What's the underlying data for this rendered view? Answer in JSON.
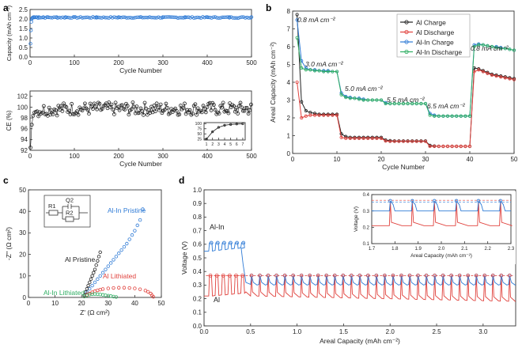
{
  "colors": {
    "black": "#222222",
    "red": "#e0413c",
    "blue": "#2f7bd6",
    "green": "#2fae63",
    "axis": "#333333"
  },
  "panel_labels": {
    "a": "a",
    "b": "b",
    "c": "c",
    "d": "d"
  },
  "chart_data": [
    {
      "id": "a_top",
      "type": "scatter",
      "xlabel": "Cycle Number",
      "ylabel": "Capacity (mAh cm⁻²)",
      "xlim": [
        0,
        500
      ],
      "ylim": [
        0,
        2.5
      ],
      "xticks": [
        0,
        100,
        200,
        300,
        400,
        500
      ],
      "yticks": [
        0.0,
        0.5,
        1.0,
        1.5,
        2.0,
        2.5
      ],
      "ytick_labels": [
        "0.0",
        "0.5",
        "1.0",
        "1.5",
        "2.0",
        "2.5"
      ],
      "series": [
        {
          "color": "blue",
          "x": [
            1,
            2,
            3,
            4,
            5,
            6,
            8,
            10,
            15,
            20,
            30,
            40,
            60,
            80,
            100,
            150,
            200,
            250,
            300,
            350,
            400,
            450,
            500
          ],
          "y": [
            0.7,
            1.4,
            1.85,
            2.0,
            2.05,
            2.08,
            2.1,
            2.1,
            2.1,
            2.1,
            2.1,
            2.1,
            2.1,
            2.1,
            2.1,
            2.1,
            2.1,
            2.1,
            2.1,
            2.1,
            2.1,
            2.1,
            2.1
          ]
        }
      ]
    },
    {
      "id": "a_bottom",
      "type": "scatter",
      "xlabel": "Cycle Number",
      "ylabel": "CE (%)",
      "xlim": [
        0,
        500
      ],
      "ylim": [
        92,
        103
      ],
      "xticks": [
        0,
        100,
        200,
        300,
        400,
        500
      ],
      "yticks": [
        92,
        94,
        96,
        98,
        100,
        102
      ],
      "series": [
        {
          "color": "black",
          "trend": [
            [
              1,
              92.5
            ],
            [
              3,
              96
            ],
            [
              6,
              98.2
            ],
            [
              10,
              99
            ],
            [
              20,
              99.4
            ],
            [
              40,
              99.6
            ],
            [
              100,
              99.7
            ],
            [
              500,
              99.7
            ]
          ]
        }
      ],
      "inset": {
        "xticks": [
          1,
          2,
          3,
          4,
          5,
          6,
          7
        ],
        "yticks": [
          25,
          50,
          75,
          100
        ],
        "ylim": [
          20,
          105
        ],
        "x": [
          1,
          2,
          3,
          4,
          5,
          6,
          7
        ],
        "y": [
          25,
          60,
          82,
          92,
          96,
          98,
          99
        ]
      }
    },
    {
      "id": "b",
      "type": "line",
      "xlabel": "Cycle Number",
      "ylabel": "Areal Capacity (mAh cm⁻²)",
      "xlim": [
        0,
        50
      ],
      "ylim": [
        0,
        8
      ],
      "xticks": [
        0,
        10,
        20,
        30,
        40,
        50
      ],
      "yticks": [
        0,
        1,
        2,
        3,
        4,
        5,
        6,
        7,
        8
      ],
      "series": [
        {
          "name": "Al Charge",
          "color": "black",
          "x": [
            1,
            2,
            3,
            4,
            5,
            6,
            7,
            8,
            9,
            10,
            11,
            12,
            13,
            14,
            15,
            16,
            17,
            18,
            19,
            20,
            21,
            22,
            23,
            24,
            25,
            26,
            27,
            28,
            29,
            30,
            31,
            32,
            33,
            34,
            35,
            36,
            37,
            38,
            39,
            40,
            41,
            42,
            43,
            44,
            45,
            46,
            47,
            48,
            49,
            50
          ],
          "y": [
            7.8,
            2.9,
            2.4,
            2.3,
            2.25,
            2.2,
            2.2,
            2.2,
            2.2,
            2.2,
            1.1,
            0.95,
            0.9,
            0.9,
            0.9,
            0.9,
            0.9,
            0.9,
            0.9,
            0.9,
            0.75,
            0.72,
            0.7,
            0.7,
            0.7,
            0.7,
            0.7,
            0.7,
            0.7,
            0.7,
            0.45,
            0.42,
            0.4,
            0.4,
            0.4,
            0.4,
            0.4,
            0.4,
            0.4,
            0.4,
            4.8,
            4.75,
            4.65,
            4.55,
            4.45,
            4.4,
            4.35,
            4.3,
            4.25,
            4.2
          ]
        },
        {
          "name": "Al Discharge",
          "color": "red",
          "x": [
            1,
            2,
            3,
            4,
            5,
            6,
            7,
            8,
            9,
            10,
            11,
            12,
            13,
            14,
            15,
            16,
            17,
            18,
            19,
            20,
            21,
            22,
            23,
            24,
            25,
            26,
            27,
            28,
            29,
            30,
            31,
            32,
            33,
            34,
            35,
            36,
            37,
            38,
            39,
            40,
            41,
            42,
            43,
            44,
            45,
            46,
            47,
            48,
            49,
            50
          ],
          "y": [
            4.0,
            2.0,
            2.1,
            2.15,
            2.15,
            2.15,
            2.15,
            2.15,
            2.15,
            2.15,
            0.9,
            0.85,
            0.85,
            0.85,
            0.85,
            0.85,
            0.85,
            0.85,
            0.85,
            0.85,
            0.7,
            0.68,
            0.68,
            0.68,
            0.68,
            0.68,
            0.68,
            0.68,
            0.68,
            0.68,
            0.4,
            0.4,
            0.4,
            0.4,
            0.4,
            0.4,
            0.4,
            0.4,
            0.4,
            0.4,
            4.6,
            4.7,
            4.6,
            4.5,
            4.4,
            4.35,
            4.3,
            4.25,
            4.2,
            4.15
          ]
        },
        {
          "name": "Al-In Charge",
          "color": "blue",
          "x": [
            1,
            2,
            3,
            4,
            5,
            6,
            7,
            8,
            9,
            10,
            11,
            12,
            13,
            14,
            15,
            16,
            17,
            18,
            19,
            20,
            21,
            22,
            23,
            24,
            25,
            26,
            27,
            28,
            29,
            30,
            31,
            32,
            33,
            34,
            35,
            36,
            37,
            38,
            39,
            40,
            41,
            42,
            43,
            44,
            45,
            46,
            47,
            48,
            49,
            50
          ],
          "y": [
            7.5,
            5.2,
            4.8,
            4.7,
            4.7,
            4.65,
            4.65,
            4.65,
            4.6,
            4.6,
            3.4,
            3.2,
            3.15,
            3.1,
            3.1,
            3.05,
            3.0,
            3.0,
            3.0,
            3.0,
            2.85,
            2.8,
            2.8,
            2.8,
            2.8,
            2.8,
            2.8,
            2.8,
            2.8,
            2.8,
            2.25,
            2.15,
            2.1,
            2.1,
            2.1,
            2.1,
            2.1,
            2.1,
            2.1,
            2.1,
            6.1,
            6.15,
            6.1,
            6.05,
            6.0,
            6.0,
            5.95,
            5.9,
            5.85,
            5.8
          ]
        },
        {
          "name": "Al-In Discharge",
          "color": "green",
          "x": [
            1,
            2,
            3,
            4,
            5,
            6,
            7,
            8,
            9,
            10,
            11,
            12,
            13,
            14,
            15,
            16,
            17,
            18,
            19,
            20,
            21,
            22,
            23,
            24,
            25,
            26,
            27,
            28,
            29,
            30,
            31,
            32,
            33,
            34,
            35,
            36,
            37,
            38,
            39,
            40,
            41,
            42,
            43,
            44,
            45,
            46,
            47,
            48,
            49,
            50
          ],
          "y": [
            6.5,
            4.8,
            4.7,
            4.7,
            4.65,
            4.65,
            4.6,
            4.6,
            4.6,
            4.6,
            3.3,
            3.15,
            3.1,
            3.1,
            3.05,
            3.0,
            3.0,
            3.0,
            3.0,
            3.0,
            2.8,
            2.8,
            2.8,
            2.8,
            2.8,
            2.8,
            2.8,
            2.8,
            2.8,
            2.8,
            2.15,
            2.1,
            2.1,
            2.1,
            2.1,
            2.1,
            2.1,
            2.1,
            2.1,
            2.1,
            6.0,
            6.1,
            6.1,
            6.05,
            6.0,
            5.95,
            5.9,
            5.9,
            5.85,
            5.8
          ]
        }
      ],
      "annotations": [
        "0.8 mA cm⁻²",
        "3.0 mA cm⁻²",
        "5.0 mA cm⁻²",
        "5.5 mA cm⁻²",
        "6.5 mA cm⁻²",
        "0.8 mA cm⁻²"
      ]
    },
    {
      "id": "c",
      "type": "scatter",
      "xlabel": "Z' (Ω cm²)",
      "ylabel": "-Z'' (Ω cm²)",
      "xlim": [
        0,
        50
      ],
      "ylim": [
        0,
        50
      ],
      "xticks": [
        0,
        10,
        20,
        30,
        40,
        50
      ],
      "yticks": [
        0,
        10,
        20,
        30,
        40,
        50
      ],
      "series": [
        {
          "label": "Al-In Pristine",
          "color": "blue",
          "x": [
            21,
            22,
            23,
            24,
            25,
            26,
            27,
            28,
            29,
            30,
            31,
            32,
            33,
            34,
            35,
            36,
            37,
            38,
            39,
            40,
            41,
            42,
            43
          ],
          "y": [
            1.0,
            2.5,
            4.0,
            5.5,
            7.0,
            8.5,
            10.0,
            11.5,
            13.0,
            14.5,
            16.0,
            17.5,
            19.0,
            20.5,
            22.0,
            23.5,
            25.0,
            27.0,
            29.0,
            31.0,
            33.5,
            36.0,
            41.0
          ]
        },
        {
          "label": "Al Pristine",
          "color": "black",
          "x": [
            21,
            21.5,
            22,
            22.5,
            23,
            23.5,
            24,
            24.5,
            25,
            25.5,
            26,
            26.5,
            27
          ],
          "y": [
            1.0,
            2.5,
            4.0,
            5.5,
            7.0,
            8.5,
            10.0,
            11.5,
            13.0,
            15.0,
            17.0,
            19.0,
            21.0
          ]
        },
        {
          "label": "Al Lithiated",
          "color": "red",
          "x": [
            21,
            22,
            23,
            24,
            25,
            26,
            27,
            28,
            30,
            32,
            34,
            36,
            38,
            40,
            42,
            44,
            45,
            46,
            46.5,
            47
          ],
          "y": [
            0.5,
            1.2,
            1.8,
            2.4,
            2.9,
            3.3,
            3.6,
            3.9,
            4.2,
            4.4,
            4.5,
            4.5,
            4.4,
            4.2,
            3.8,
            3.2,
            2.6,
            1.8,
            1.0,
            0.3
          ]
        },
        {
          "label": "Al-In Lithiated",
          "color": "green",
          "x": [
            21,
            22,
            23,
            24,
            25,
            26,
            27,
            28,
            29,
            30,
            31,
            32,
            33
          ],
          "y": [
            0.4,
            0.9,
            1.3,
            1.5,
            1.6,
            1.5,
            1.4,
            1.2,
            1.0,
            0.8,
            0.6,
            0.4,
            0.2
          ]
        }
      ],
      "circuit": {
        "labels": [
          "R1",
          "Q2",
          "R2"
        ]
      }
    },
    {
      "id": "d",
      "type": "line",
      "xlabel": "Areal Capacity (mAh cm⁻²)",
      "ylabel": "Voltage (V)",
      "xlim": [
        0,
        3.35
      ],
      "ylim": [
        0,
        1.0
      ],
      "xticks": [
        0.0,
        0.5,
        1.0,
        1.5,
        2.0,
        2.5,
        3.0
      ],
      "xtick_labels": [
        "0.0",
        "0.5",
        "1.0",
        "1.5",
        "2.0",
        "2.5",
        "3.0"
      ],
      "yticks": [
        0.0,
        0.1,
        0.2,
        0.3,
        0.4,
        0.5,
        0.6,
        0.7,
        0.8,
        0.9,
        1.0
      ],
      "ytick_labels": [
        "0.0",
        "0.1",
        "0.2",
        "0.3",
        "0.4",
        "0.5",
        "0.6",
        "0.7",
        "0.8",
        "0.9",
        "1.0"
      ],
      "series": [
        {
          "label": "Al-In",
          "color": "blue",
          "base_start": 0.55,
          "base_end": 0.57,
          "base_after": 0.3,
          "peak_before": 0.61,
          "peak_after": 0.37,
          "drop_at": 0.45
        },
        {
          "label": "Al",
          "color": "red",
          "base_start": 0.22,
          "base_end": 0.25,
          "base_after": 0.22,
          "base_final": 0.18,
          "peak": 0.37
        }
      ],
      "inset": {
        "xlabel": "Areal Capacity (mAh cm⁻²)",
        "ylabel": "Voltage (V)",
        "xlim": [
          1.7,
          2.3
        ],
        "ylim": [
          0.1,
          0.4
        ],
        "xticks": [
          1.7,
          1.8,
          1.9,
          2.0,
          2.1,
          2.2,
          2.3
        ],
        "xtick_labels": [
          "1.7",
          "1.8",
          "1.9",
          "2.0",
          "2.1",
          "2.2",
          "2.3"
        ],
        "yticks": [
          0.1,
          0.2,
          0.3,
          0.4
        ],
        "ytick_labels": [
          "0.1",
          "0.2",
          "0.3",
          "0.4"
        ],
        "pulses_x": [
          1.78,
          1.875,
          1.97,
          2.065,
          2.16,
          2.255
        ]
      }
    }
  ]
}
